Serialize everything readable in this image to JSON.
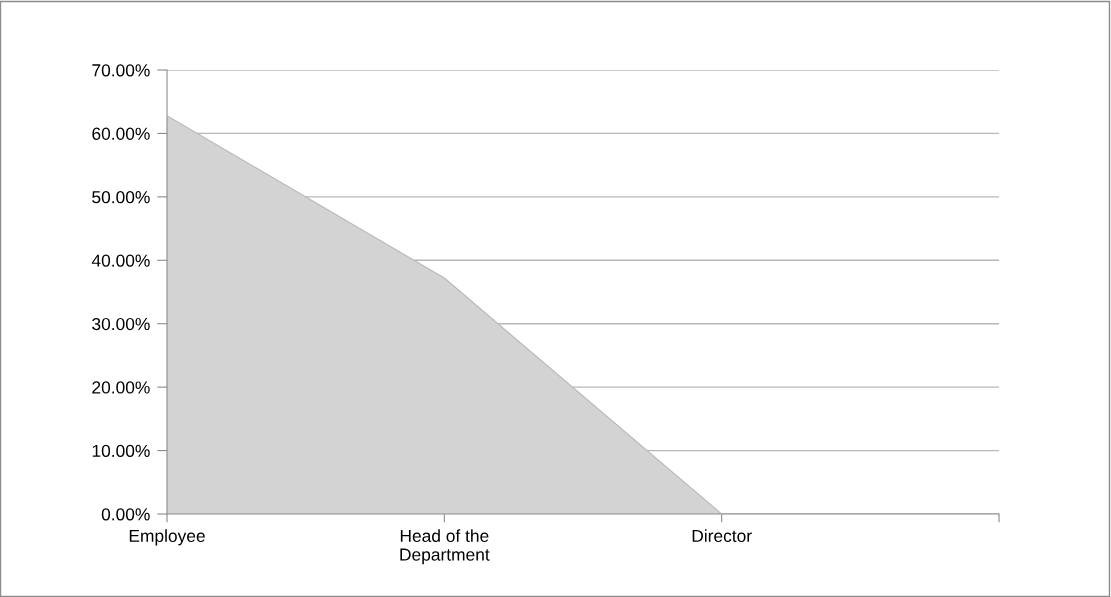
{
  "chart_data": {
    "type": "area",
    "categories": [
      "Employee",
      "Head of the\nDepartment",
      "Director",
      null
    ],
    "values": [
      62.8,
      37.2,
      0,
      null
    ],
    "color": "#d3d3d3",
    "ylim": [
      0,
      70
    ],
    "yticks": [
      {
        "value": 0,
        "label": "0.00%"
      },
      {
        "value": 10,
        "label": "10.00%"
      },
      {
        "value": 20,
        "label": "20.00%"
      },
      {
        "value": 30,
        "label": "30.00%"
      },
      {
        "value": 40,
        "label": "40.00%"
      },
      {
        "value": 50,
        "label": "50.00%"
      },
      {
        "value": 60,
        "label": "60.00%"
      },
      {
        "value": 70,
        "label": "70.00%"
      }
    ],
    "grid": "y"
  }
}
